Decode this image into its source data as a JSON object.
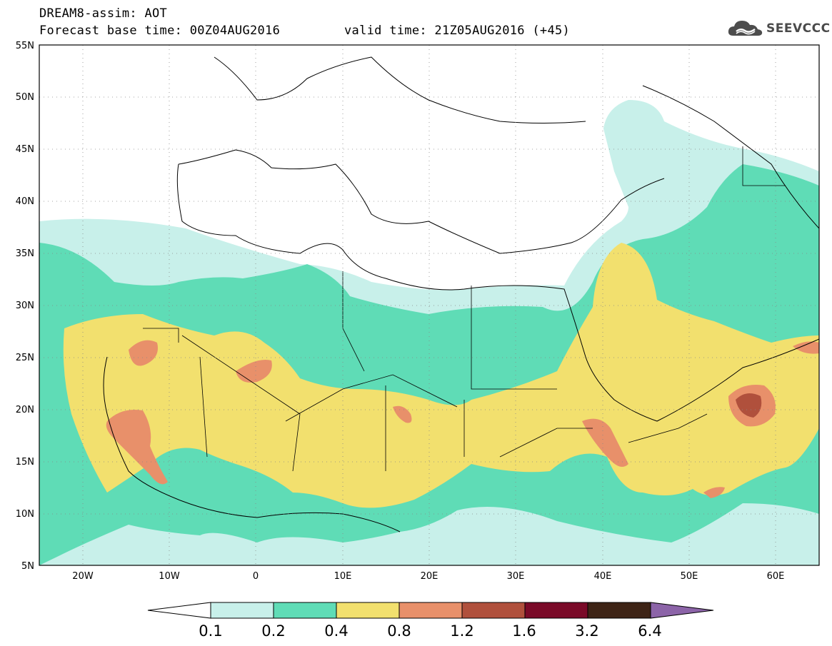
{
  "header": {
    "title": "DREAM8-assim: AOT",
    "base_time": "Forecast base time: 00Z04AUG2016",
    "valid_time": "valid time: 21Z05AUG2016 (+45)",
    "logo_text": "SEEVCCC"
  },
  "map": {
    "variable": "AOT",
    "lat_range": [
      5,
      55
    ],
    "lon_range": [
      -25,
      65
    ],
    "lat_ticks": [
      "5N",
      "10N",
      "15N",
      "20N",
      "25N",
      "30N",
      "35N",
      "40N",
      "45N",
      "50N",
      "55N"
    ],
    "lon_ticks": [
      "20W",
      "10W",
      "0",
      "10E",
      "20E",
      "30E",
      "40E",
      "50E",
      "60E"
    ],
    "grid": "dotted"
  },
  "colorbar": {
    "levels": [
      "0.1",
      "0.2",
      "0.4",
      "0.8",
      "1.2",
      "1.6",
      "3.2",
      "6.4"
    ],
    "colors": [
      "#ffffff",
      "#c8f0ea",
      "#5fdcb6",
      "#f2e06e",
      "#e8906a",
      "#b0503c",
      "#7a0a28",
      "#3e2416",
      "#8c64a8"
    ]
  }
}
